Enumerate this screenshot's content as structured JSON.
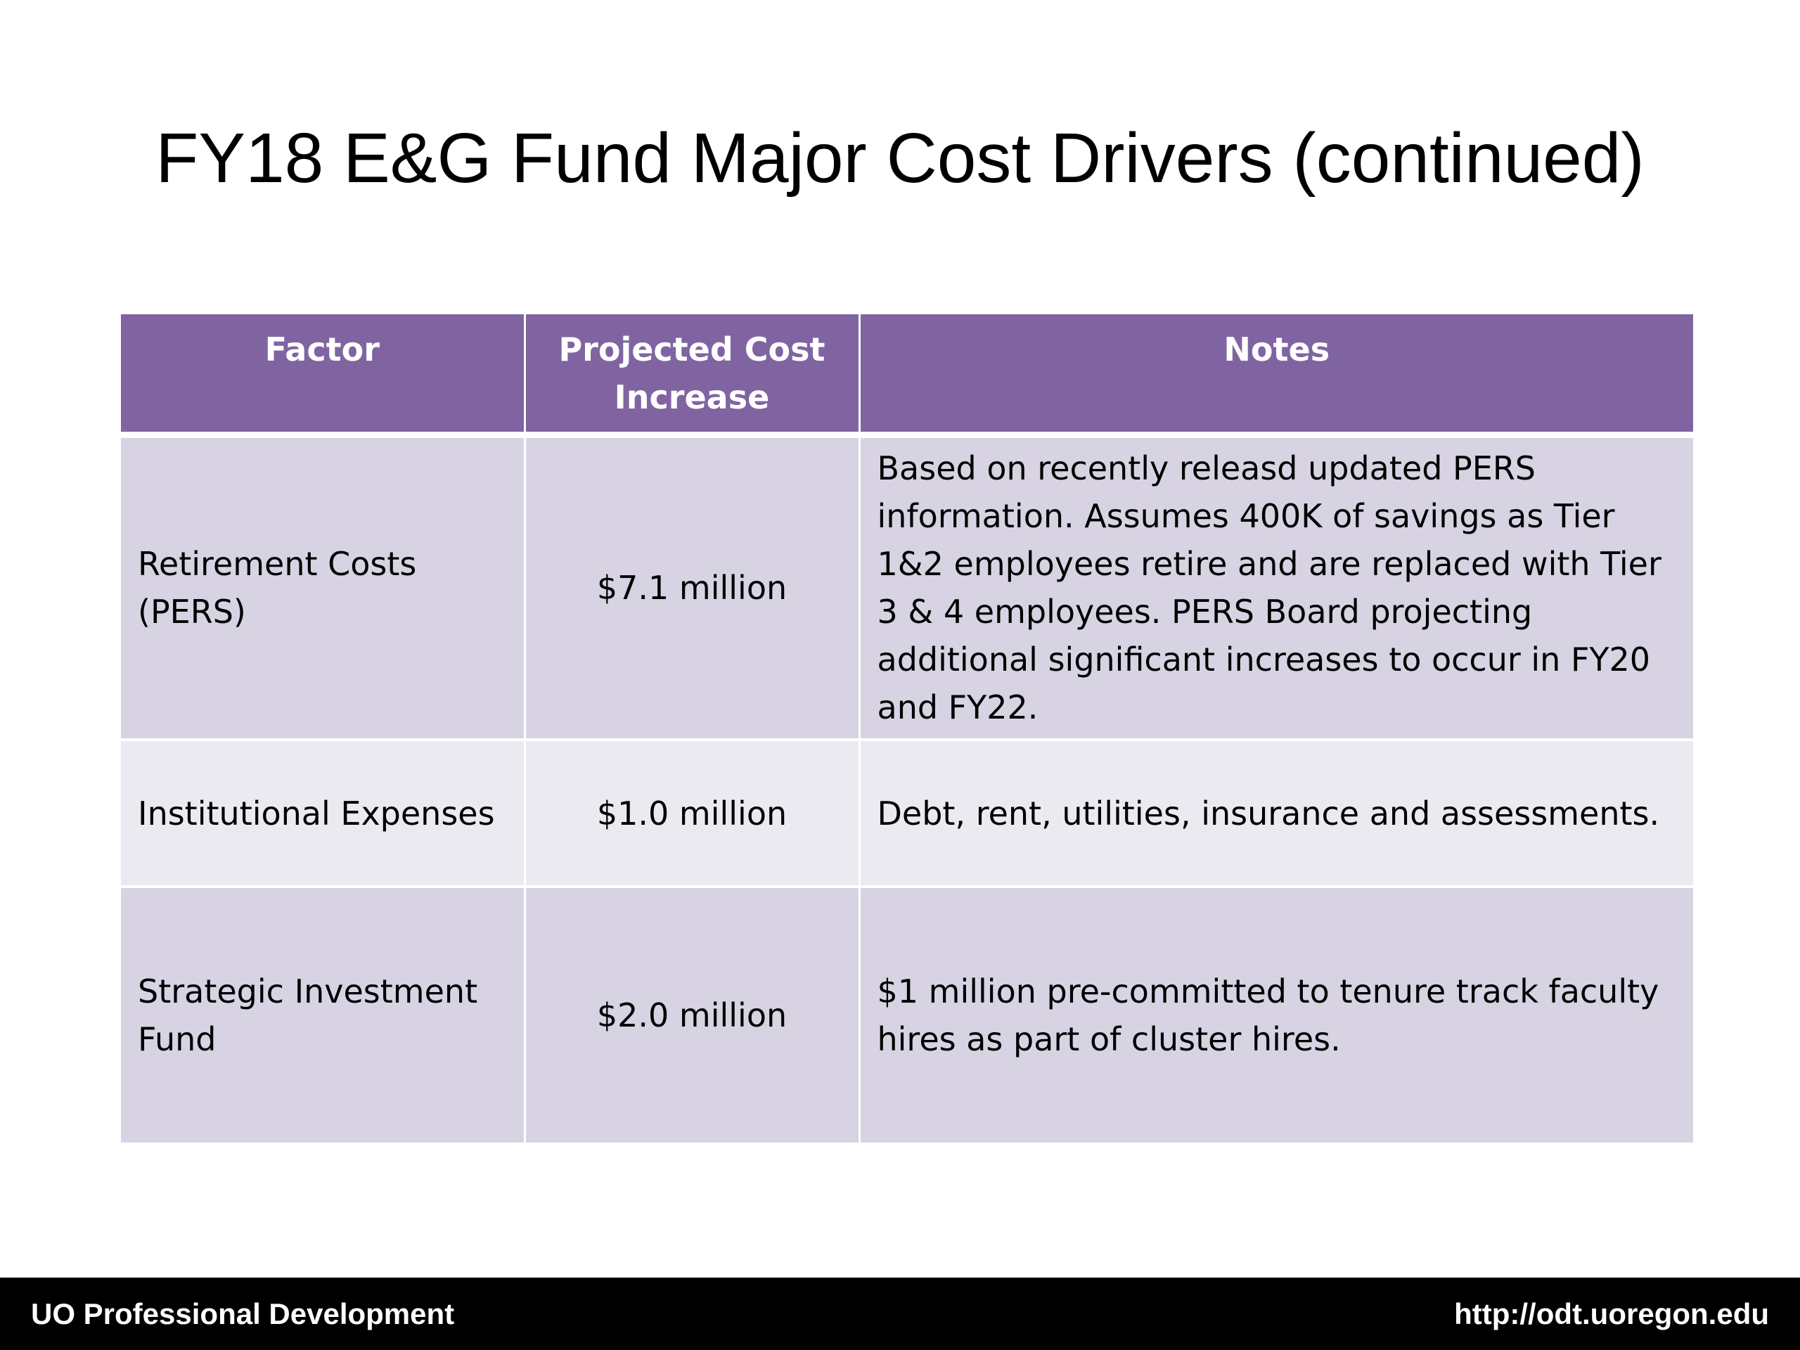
{
  "slide": {
    "title": "FY18 E&G Fund Major Cost Drivers (continued)"
  },
  "table": {
    "headers": {
      "factor": "Factor",
      "cost": "Projected Cost Increase",
      "notes": "Notes"
    },
    "rows": [
      {
        "factor": "Retirement Costs (PERS)",
        "cost": "$7.1 million",
        "notes": "Based on recently releasd updated PERS information.  Assumes 400K of savings as Tier 1&2 employees retire and are replaced with Tier 3 & 4 employees.  PERS Board projecting additional significant increases to occur in FY20 and FY22."
      },
      {
        "factor": "Institutional Expenses",
        "cost": "$1.0 million",
        "notes": "Debt, rent, utilities, insurance and assessments."
      },
      {
        "factor": "Strategic Investment Fund",
        "cost": "$2.0 million",
        "notes": "$1 million pre-committed to tenure track faculty hires as part of cluster hires."
      }
    ]
  },
  "footer": {
    "left": "UO Professional Development",
    "right": "http://odt.uoregon.edu"
  },
  "colors": {
    "header_bg": "#8064a2",
    "row_dark": "#d8d3e2",
    "row_light": "#eceaf1",
    "footer_bg": "#000000"
  }
}
